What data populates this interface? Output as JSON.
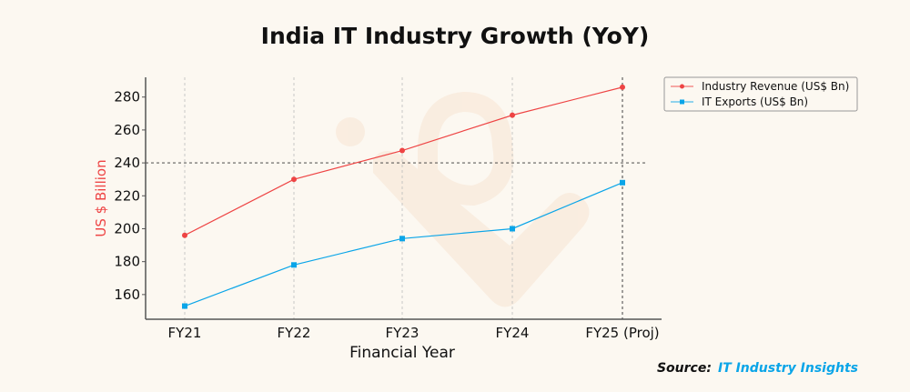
{
  "chart_data": {
    "type": "line",
    "title": "India IT Industry Growth (YoY)",
    "xlabel": "Financial Year",
    "ylabel": "US $ Billion",
    "categories": [
      "FY21",
      "FY22",
      "FY23",
      "FY24",
      "FY25 (Proj)"
    ],
    "yticks": [
      160,
      180,
      200,
      220,
      240,
      260,
      280
    ],
    "ylim": [
      145,
      292
    ],
    "grid": "vertical dashed at categories",
    "reference_line_y": 240,
    "reference_line_x": "FY25 (Proj)",
    "legend_position": "top-right, outside plot",
    "series": [
      {
        "name": "Industry Revenue (US$ Bn)",
        "values": [
          196,
          230,
          247.5,
          269,
          286
        ],
        "color": "#ee4444",
        "marker": "circle"
      },
      {
        "name": "IT Exports (US$ Bn)",
        "values": [
          153,
          178,
          194,
          200,
          228
        ],
        "color": "#0aa5e8",
        "marker": "square"
      }
    ],
    "source_prefix": "Source:",
    "source_name": "IT Industry Insights"
  },
  "colors": {
    "background": "#fcf8f1",
    "source_prefix": "#111111",
    "source_name": "#0aa5e8"
  }
}
